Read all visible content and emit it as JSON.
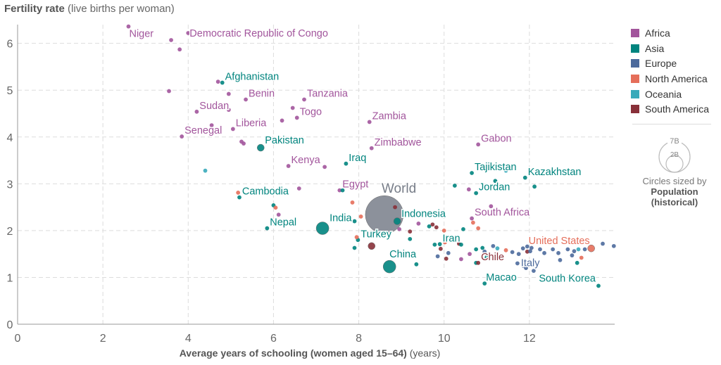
{
  "chart_data": {
    "type": "scatter",
    "title": "Fertility rate",
    "title_unit": "(live births per woman)",
    "xlabel": "Average years of schooling (women aged 15–64)",
    "xlabel_unit": "(years)",
    "ylabel": "Fertility rate",
    "xlim": [
      0,
      14
    ],
    "ylim": [
      0,
      6.4
    ],
    "x_ticks": [
      0,
      2,
      4,
      6,
      8,
      10,
      12
    ],
    "y_ticks": [
      0,
      1,
      2,
      3,
      4,
      5,
      6
    ],
    "grid": true,
    "legend_placement": "right",
    "size_legend": {
      "label": "Circles sized by",
      "metric": "Population",
      "metric_note": "(historical)",
      "values": [
        "7B",
        "2B"
      ]
    },
    "regions": [
      {
        "name": "Africa",
        "color": "#a2559c"
      },
      {
        "name": "Asia",
        "color": "#00847e"
      },
      {
        "name": "Europe",
        "color": "#4c6a9c"
      },
      {
        "name": "North America",
        "color": "#e56e5a"
      },
      {
        "name": "Oceania",
        "color": "#38aaba"
      },
      {
        "name": "South America",
        "color": "#883039"
      }
    ],
    "world_color": "#868b96",
    "points": [
      {
        "label": "Niger",
        "region": "Africa",
        "x": 2.6,
        "y": 6.36,
        "pop": "s"
      },
      {
        "label": "Democratic Republic of Congo",
        "region": "Africa",
        "x": 4.0,
        "y": 6.22,
        "pop": "s"
      },
      {
        "label": "",
        "region": "Africa",
        "x": 3.6,
        "y": 6.07,
        "pop": "s"
      },
      {
        "label": "",
        "region": "Africa",
        "x": 3.8,
        "y": 5.87,
        "pop": "s"
      },
      {
        "label": "",
        "region": "Africa",
        "x": 3.55,
        "y": 4.98,
        "pop": "s"
      },
      {
        "label": "",
        "region": "Africa",
        "x": 4.7,
        "y": 5.18,
        "pop": "s"
      },
      {
        "label": "Afghanistan",
        "region": "Asia",
        "x": 4.8,
        "y": 5.16,
        "pop": "s"
      },
      {
        "label": "",
        "region": "Africa",
        "x": 4.95,
        "y": 4.92,
        "pop": "s"
      },
      {
        "label": "Benin",
        "region": "Africa",
        "x": 5.35,
        "y": 4.8,
        "pop": "s"
      },
      {
        "label": "Tanzania",
        "region": "Africa",
        "x": 6.72,
        "y": 4.8,
        "pop": "s"
      },
      {
        "label": "Sudan",
        "region": "Africa",
        "x": 4.2,
        "y": 4.54,
        "pop": "s"
      },
      {
        "label": "",
        "region": "Africa",
        "x": 4.95,
        "y": 4.58,
        "pop": "s"
      },
      {
        "label": "",
        "region": "Africa",
        "x": 6.45,
        "y": 4.62,
        "pop": "s"
      },
      {
        "label": "Togo",
        "region": "Africa",
        "x": 6.55,
        "y": 4.41,
        "pop": "s"
      },
      {
        "label": "",
        "region": "Africa",
        "x": 6.2,
        "y": 4.35,
        "pop": "s"
      },
      {
        "label": "Liberia",
        "region": "Africa",
        "x": 5.05,
        "y": 4.17,
        "pop": "s"
      },
      {
        "label": "",
        "region": "Africa",
        "x": 4.55,
        "y": 4.25,
        "pop": "s"
      },
      {
        "label": "Senegal",
        "region": "Africa",
        "x": 3.85,
        "y": 4.01,
        "pop": "s"
      },
      {
        "label": "",
        "region": "Africa",
        "x": 5.25,
        "y": 3.9,
        "pop": "s"
      },
      {
        "label": "",
        "region": "Africa",
        "x": 5.3,
        "y": 3.86,
        "pop": "s"
      },
      {
        "label": "Pakistan",
        "region": "Asia",
        "x": 5.7,
        "y": 3.77,
        "pop": "m"
      },
      {
        "label": "Zambia",
        "region": "Africa",
        "x": 8.25,
        "y": 4.32,
        "pop": "s"
      },
      {
        "label": "Zimbabwe",
        "region": "Africa",
        "x": 8.3,
        "y": 3.76,
        "pop": "s"
      },
      {
        "label": "Kenya",
        "region": "Africa",
        "x": 6.35,
        "y": 3.38,
        "pop": "s"
      },
      {
        "label": "",
        "region": "Africa",
        "x": 7.2,
        "y": 3.36,
        "pop": "s"
      },
      {
        "label": "Iraq",
        "region": "Asia",
        "x": 7.7,
        "y": 3.43,
        "pop": "s"
      },
      {
        "label": "",
        "region": "Oceania",
        "x": 4.4,
        "y": 3.28,
        "pop": "s"
      },
      {
        "label": "Egypt",
        "region": "Africa",
        "x": 7.55,
        "y": 2.86,
        "pop": "s"
      },
      {
        "label": "",
        "region": "Asia",
        "x": 7.62,
        "y": 2.86,
        "pop": "s"
      },
      {
        "label": "",
        "region": "Africa",
        "x": 6.6,
        "y": 2.9,
        "pop": "s"
      },
      {
        "label": "Cambodia",
        "region": "Asia",
        "x": 5.2,
        "y": 2.71,
        "pop": "s"
      },
      {
        "label": "",
        "region": "North America",
        "x": 5.17,
        "y": 2.81,
        "pop": "s"
      },
      {
        "label": "",
        "region": "Asia",
        "x": 6.0,
        "y": 2.54,
        "pop": "s"
      },
      {
        "label": "",
        "region": "North America",
        "x": 6.05,
        "y": 2.49,
        "pop": "s"
      },
      {
        "label": "",
        "region": "Africa",
        "x": 6.12,
        "y": 2.34,
        "pop": "s"
      },
      {
        "label": "Nepal",
        "region": "Asia",
        "x": 5.85,
        "y": 2.05,
        "pop": "s"
      },
      {
        "label": "India",
        "region": "Asia",
        "x": 7.15,
        "y": 2.05,
        "pop": "l"
      },
      {
        "label": "",
        "region": "North America",
        "x": 7.85,
        "y": 2.6,
        "pop": "s"
      },
      {
        "label": "",
        "region": "Asia",
        "x": 7.9,
        "y": 2.2,
        "pop": "s"
      },
      {
        "label": "",
        "region": "North America",
        "x": 8.05,
        "y": 2.3,
        "pop": "s"
      },
      {
        "label": "World",
        "region": "World",
        "x": 8.6,
        "y": 2.34,
        "pop": "world"
      },
      {
        "label": "",
        "region": "South America",
        "x": 8.85,
        "y": 2.5,
        "pop": "s"
      },
      {
        "label": "Indonesia",
        "region": "Asia",
        "x": 8.9,
        "y": 2.2,
        "pop": "m"
      },
      {
        "label": "",
        "region": "Africa",
        "x": 8.95,
        "y": 2.03,
        "pop": "s"
      },
      {
        "label": "",
        "region": "Africa",
        "x": 9.4,
        "y": 2.15,
        "pop": "s"
      },
      {
        "label": "",
        "region": "South America",
        "x": 9.2,
        "y": 1.98,
        "pop": "s"
      },
      {
        "label": "",
        "region": "Asia",
        "x": 9.65,
        "y": 2.09,
        "pop": "s"
      },
      {
        "label": "",
        "region": "South America",
        "x": 9.73,
        "y": 2.13,
        "pop": "s"
      },
      {
        "label": "",
        "region": "South America",
        "x": 9.82,
        "y": 2.07,
        "pop": "s"
      },
      {
        "label": "Turkey",
        "region": "Asia",
        "x": 7.98,
        "y": 1.8,
        "pop": "s"
      },
      {
        "label": "",
        "region": "North America",
        "x": 7.95,
        "y": 1.86,
        "pop": "s"
      },
      {
        "label": "",
        "region": "South America",
        "x": 8.3,
        "y": 1.67,
        "pop": "m2"
      },
      {
        "label": "",
        "region": "Asia",
        "x": 7.9,
        "y": 1.63,
        "pop": "s"
      },
      {
        "label": "",
        "region": "Asia",
        "x": 9.2,
        "y": 1.82,
        "pop": "s"
      },
      {
        "label": "China",
        "region": "Asia",
        "x": 8.72,
        "y": 1.23,
        "pop": "l"
      },
      {
        "label": "",
        "region": "Asia",
        "x": 9.35,
        "y": 1.28,
        "pop": "s"
      },
      {
        "label": "Iran",
        "region": "Asia",
        "x": 9.9,
        "y": 1.71,
        "pop": "s"
      },
      {
        "label": "",
        "region": "Asia",
        "x": 9.78,
        "y": 1.7,
        "pop": "s"
      },
      {
        "label": "",
        "region": "North America",
        "x": 10.0,
        "y": 2.0,
        "pop": "s"
      },
      {
        "label": "",
        "region": "Asia",
        "x": 10.45,
        "y": 2.03,
        "pop": "s"
      },
      {
        "label": "",
        "region": "North America",
        "x": 10.02,
        "y": 1.75,
        "pop": "s"
      },
      {
        "label": "",
        "region": "South America",
        "x": 9.92,
        "y": 1.61,
        "pop": "s"
      },
      {
        "label": "",
        "region": "South America",
        "x": 10.35,
        "y": 1.72,
        "pop": "s"
      },
      {
        "label": "",
        "region": "Europe",
        "x": 9.85,
        "y": 1.45,
        "pop": "s"
      },
      {
        "label": "",
        "region": "Europe",
        "x": 10.1,
        "y": 1.52,
        "pop": "s"
      },
      {
        "label": "",
        "region": "South America",
        "x": 10.05,
        "y": 1.4,
        "pop": "s"
      },
      {
        "label": "",
        "region": "Africa",
        "x": 10.4,
        "y": 1.39,
        "pop": "s"
      },
      {
        "label": "",
        "region": "Asia",
        "x": 10.75,
        "y": 1.31,
        "pop": "s"
      },
      {
        "label": "",
        "region": "Asia",
        "x": 10.25,
        "y": 2.96,
        "pop": "s"
      },
      {
        "label": "",
        "region": "Africa",
        "x": 10.58,
        "y": 2.88,
        "pop": "s"
      },
      {
        "label": "Jordan",
        "region": "Asia",
        "x": 10.75,
        "y": 2.8,
        "pop": "s"
      },
      {
        "label": "Tajikistan",
        "region": "Asia",
        "x": 10.65,
        "y": 3.23,
        "pop": "s"
      },
      {
        "label": "",
        "region": "Oceania",
        "x": 11.45,
        "y": 3.28,
        "pop": "s"
      },
      {
        "label": "",
        "region": "Asia",
        "x": 11.2,
        "y": 3.06,
        "pop": "s"
      },
      {
        "label": "Kazakhstan",
        "region": "Asia",
        "x": 11.9,
        "y": 3.13,
        "pop": "s"
      },
      {
        "label": "",
        "region": "Asia",
        "x": 12.12,
        "y": 2.94,
        "pop": "s"
      },
      {
        "label": "Gabon",
        "region": "Africa",
        "x": 10.8,
        "y": 3.84,
        "pop": "s"
      },
      {
        "label": "",
        "region": "Africa",
        "x": 11.1,
        "y": 2.52,
        "pop": "s"
      },
      {
        "label": "South Africa",
        "region": "Africa",
        "x": 10.65,
        "y": 2.26,
        "pop": "s"
      },
      {
        "label": "",
        "region": "North America",
        "x": 10.68,
        "y": 2.17,
        "pop": "s"
      },
      {
        "label": "",
        "region": "North America",
        "x": 10.8,
        "y": 2.05,
        "pop": "s"
      },
      {
        "label": "",
        "region": "Asia",
        "x": 10.4,
        "y": 1.7,
        "pop": "s"
      },
      {
        "label": "",
        "region": "Asia",
        "x": 10.9,
        "y": 1.63,
        "pop": "s"
      },
      {
        "label": "",
        "region": "Europe",
        "x": 11.15,
        "y": 1.67,
        "pop": "s"
      },
      {
        "label": "",
        "region": "Asia",
        "x": 10.75,
        "y": 1.6,
        "pop": "s"
      },
      {
        "label": "",
        "region": "Europe",
        "x": 10.95,
        "y": 1.55,
        "pop": "s"
      },
      {
        "label": "",
        "region": "Oceania",
        "x": 11.25,
        "y": 1.62,
        "pop": "s"
      },
      {
        "label": "",
        "region": "North America",
        "x": 11.45,
        "y": 1.58,
        "pop": "s"
      },
      {
        "label": "",
        "region": "Africa",
        "x": 10.6,
        "y": 1.5,
        "pop": "s"
      },
      {
        "label": "",
        "region": "Asia",
        "x": 11.0,
        "y": 1.43,
        "pop": "s"
      },
      {
        "label": "Chile",
        "region": "South America",
        "x": 10.8,
        "y": 1.31,
        "pop": "s"
      },
      {
        "label": "",
        "region": "Europe",
        "x": 11.22,
        "y": 1.4,
        "pop": "s"
      },
      {
        "label": "Macao",
        "region": "Asia",
        "x": 10.95,
        "y": 0.87,
        "pop": "s"
      },
      {
        "label": "",
        "region": "South America",
        "x": 11.95,
        "y": 1.55,
        "pop": "s"
      },
      {
        "label": "",
        "region": "Europe",
        "x": 12.05,
        "y": 1.63,
        "pop": "s"
      },
      {
        "label": "",
        "region": "Europe",
        "x": 11.75,
        "y": 1.5,
        "pop": "s"
      },
      {
        "label": "",
        "region": "Europe",
        "x": 11.85,
        "y": 1.62,
        "pop": "s"
      },
      {
        "label": "",
        "region": "Europe",
        "x": 11.95,
        "y": 1.66,
        "pop": "s"
      },
      {
        "label": "",
        "region": "Europe",
        "x": 11.6,
        "y": 1.54,
        "pop": "s"
      },
      {
        "label": "",
        "region": "Europe",
        "x": 12.02,
        "y": 1.56,
        "pop": "s"
      },
      {
        "label": "",
        "region": "Europe",
        "x": 12.25,
        "y": 1.6,
        "pop": "s"
      },
      {
        "label": "",
        "region": "Europe",
        "x": 12.35,
        "y": 1.52,
        "pop": "s"
      },
      {
        "label": "Italy",
        "region": "Europe",
        "x": 11.72,
        "y": 1.3,
        "pop": "s"
      },
      {
        "label": "",
        "region": "Europe",
        "x": 11.85,
        "y": 1.25,
        "pop": "s"
      },
      {
        "label": "",
        "region": "Europe",
        "x": 11.92,
        "y": 1.2,
        "pop": "s"
      },
      {
        "label": "",
        "region": "Europe",
        "x": 12.1,
        "y": 1.14,
        "pop": "s"
      },
      {
        "label": "",
        "region": "Europe",
        "x": 12.55,
        "y": 1.6,
        "pop": "s"
      },
      {
        "label": "",
        "region": "Europe",
        "x": 12.68,
        "y": 1.52,
        "pop": "s"
      },
      {
        "label": "",
        "region": "Europe",
        "x": 12.72,
        "y": 1.37,
        "pop": "s"
      },
      {
        "label": "",
        "region": "Europe",
        "x": 12.9,
        "y": 1.6,
        "pop": "s"
      },
      {
        "label": "",
        "region": "Europe",
        "x": 13.0,
        "y": 1.47,
        "pop": "s"
      },
      {
        "label": "",
        "region": "Europe",
        "x": 13.05,
        "y": 1.56,
        "pop": "s"
      },
      {
        "label": "",
        "region": "Oceania",
        "x": 13.15,
        "y": 1.6,
        "pop": "s"
      },
      {
        "label": "",
        "region": "Europe",
        "x": 13.3,
        "y": 1.6,
        "pop": "s"
      },
      {
        "label": "",
        "region": "Asia",
        "x": 13.12,
        "y": 1.31,
        "pop": "s"
      },
      {
        "label": "",
        "region": "North America",
        "x": 13.22,
        "y": 1.42,
        "pop": "s"
      },
      {
        "label": "United States",
        "region": "North America",
        "x": 13.45,
        "y": 1.62,
        "pop": "m"
      },
      {
        "label": "",
        "region": "Europe",
        "x": 13.72,
        "y": 1.72,
        "pop": "s"
      },
      {
        "label": "",
        "region": "Europe",
        "x": 13.98,
        "y": 1.67,
        "pop": "s"
      },
      {
        "label": "South Korea",
        "region": "Asia",
        "x": 13.62,
        "y": 0.82,
        "pop": "s"
      }
    ]
  }
}
